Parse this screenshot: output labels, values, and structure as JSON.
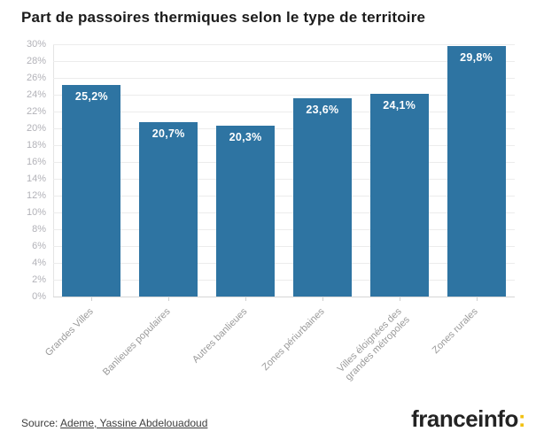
{
  "header": {
    "title": "Part de passoires thermiques selon le type de territoire"
  },
  "chart_data": {
    "type": "bar",
    "title": "Part de passoires thermiques selon le type de territoire",
    "categories": [
      "Grandes Villes",
      "Banlieues populaires",
      "Autres banlieues",
      "Zones périurbaines",
      "Villes éloignées des\ngrandes métropoles",
      "Zones rurales"
    ],
    "values": [
      25.2,
      20.7,
      20.3,
      23.6,
      24.1,
      29.8
    ],
    "value_labels": [
      "25,2%",
      "20,7%",
      "20,3%",
      "23,6%",
      "24,1%",
      "29,8%"
    ],
    "xlabel": "",
    "ylabel": "",
    "ylim": [
      0,
      30
    ],
    "ytick_step": 2,
    "ytick_suffix": "%",
    "grid": true,
    "legend": "none",
    "bar_color": "#2e74a2",
    "value_label_color": "#ffffff"
  },
  "footer": {
    "source_prefix": "Source: ",
    "source_link": "Ademe, Yassine Abdelouadoud",
    "brand": {
      "name": "franceinfo",
      "colon": ":",
      "colon_color": "#f2c112"
    }
  }
}
